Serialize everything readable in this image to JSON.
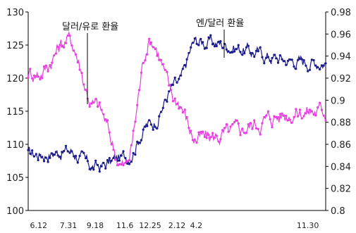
{
  "chart_data": {
    "type": "line",
    "left_axis": {
      "range": [
        100,
        130
      ],
      "ticks": [
        "100",
        "105",
        "110",
        "115",
        "120",
        "125",
        "130"
      ]
    },
    "right_axis": {
      "range": [
        0.8,
        0.98
      ],
      "ticks": [
        "0.8",
        "0.82",
        "0.84",
        "0.86",
        "0.88",
        "0.9",
        "0.92",
        "0.94",
        "0.96",
        "0.98"
      ]
    },
    "x_ticks": [
      "6.12",
      "7.31",
      "9.18",
      "11.6",
      "12.25",
      "2.12",
      "4.2",
      "11.30"
    ],
    "grid": false,
    "annotations": [
      {
        "text": "달러/유로 환율",
        "series": "eurusd"
      },
      {
        "text": "엔/달러 환율",
        "series": "usdjpy"
      }
    ],
    "series": [
      {
        "id": "usdjpy",
        "axis": "left",
        "color": "#1a1a8c",
        "x": [
          "6.12",
          "7.31",
          "9.18",
          "11.6",
          "12.25",
          "2.12",
          "4.2",
          "11.30"
        ],
        "values": [
          108.5,
          109.0,
          106.5,
          108.0,
          113.0,
          119.0,
          125.5,
          122.5
        ]
      },
      {
        "id": "eurusd",
        "axis": "right",
        "color": "#e83fe0",
        "x": [
          "6.12",
          "7.31",
          "9.18",
          "11.6",
          "12.25",
          "2.12",
          "4.2",
          "11.30"
        ],
        "values": [
          0.925,
          0.955,
          0.895,
          0.84,
          0.955,
          0.9,
          0.865,
          0.89
        ]
      }
    ]
  }
}
